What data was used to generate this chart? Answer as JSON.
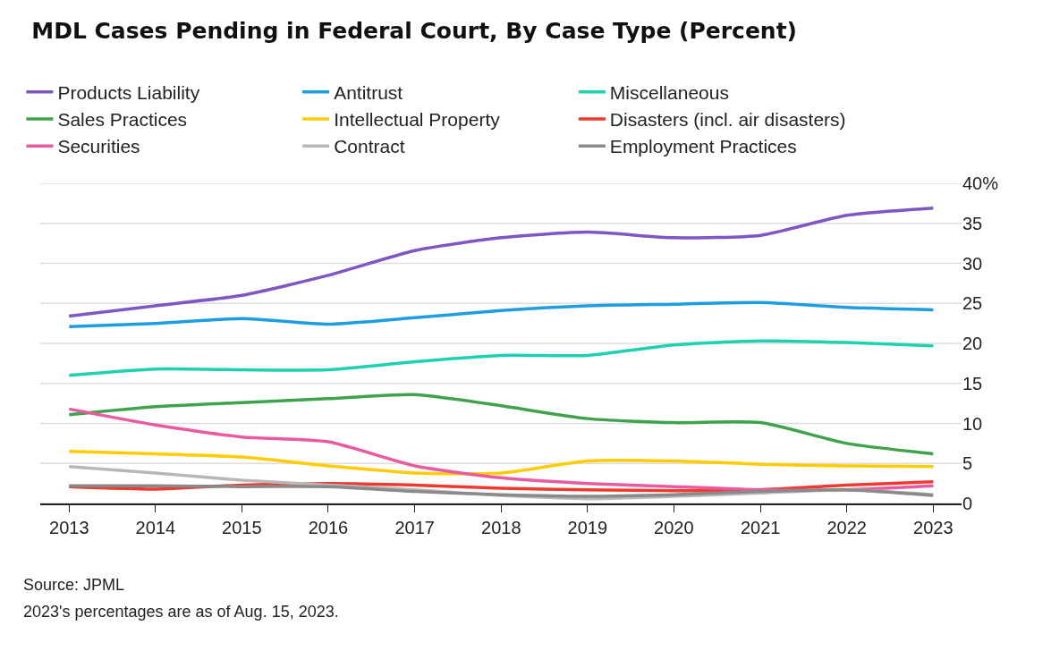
{
  "chart_data": {
    "type": "line",
    "title": "MDL Cases Pending in Federal Court, By Case Type (Percent)",
    "x": [
      "2013",
      "2014",
      "2015",
      "2016",
      "2017",
      "2018",
      "2019",
      "2020",
      "2021",
      "2022",
      "2023"
    ],
    "xticks": [
      {
        "value": "2013",
        "label": "2013"
      },
      {
        "value": "2014",
        "label": "2014"
      },
      {
        "value": "2015",
        "label": "2015"
      },
      {
        "value": "2016",
        "label": "2016"
      },
      {
        "value": "2017",
        "label": "2017"
      },
      {
        "value": "2018",
        "label": "2018"
      },
      {
        "value": "2019",
        "label": "2019"
      },
      {
        "value": "2020",
        "label": "2020"
      },
      {
        "value": "2021",
        "label": "2021"
      },
      {
        "value": "2022",
        "label": "2022"
      },
      {
        "value": "2023",
        "label": "2023"
      }
    ],
    "xlim": [
      "2012-09",
      "2023-05"
    ],
    "ylim": [
      0,
      40
    ],
    "yticks": [
      0,
      5,
      10,
      15,
      20,
      25,
      30,
      35,
      {
        "value": 40,
        "label": "40%"
      }
    ],
    "grid": "y",
    "legend": "top",
    "marker": "none",
    "line_style": "solid",
    "series": [
      {
        "name": "Products Liability",
        "color": "#7e57c2",
        "values": [
          23.4,
          24.7,
          26,
          28.5,
          31.6,
          33.2,
          33.9,
          33.2,
          33.5,
          36,
          36.9
        ]
      },
      {
        "name": "Antitrust",
        "color": "#1e9ee0",
        "values": [
          22.1,
          22.5,
          23.1,
          22.4,
          23.2,
          24.1,
          24.7,
          24.9,
          25.1,
          24.5,
          24.2
        ]
      },
      {
        "name": "Miscellaneous",
        "color": "#1ed1b0",
        "values": [
          16,
          16.8,
          16.7,
          16.7,
          17.7,
          18.5,
          18.5,
          19.8,
          20.3,
          20.1,
          19.7
        ]
      },
      {
        "name": "Sales Practices",
        "color": "#3fa34d",
        "values": [
          11.1,
          12.1,
          12.6,
          13.1,
          13.6,
          12.2,
          10.6,
          10.1,
          10.1,
          7.5,
          6.2
        ]
      },
      {
        "name": "Intellectual Property",
        "color": "#ffcc00",
        "values": [
          6.5,
          6.2,
          5.8,
          4.7,
          3.8,
          3.8,
          5.3,
          5.3,
          4.9,
          4.7,
          4.6
        ]
      },
      {
        "name": "Disasters (incl. air disasters)",
        "color": "#f03a30",
        "values": [
          2.1,
          1.8,
          2.3,
          2.5,
          2.3,
          1.9,
          1.7,
          1.6,
          1.7,
          2.3,
          2.7
        ]
      },
      {
        "name": "Securities",
        "color": "#e85ba0",
        "values": [
          11.8,
          9.8,
          8.3,
          7.7,
          4.7,
          3.2,
          2.5,
          2.1,
          1.7,
          1.7,
          2.2
        ]
      },
      {
        "name": "Contract",
        "color": "#b8b8b8",
        "values": [
          4.6,
          3.8,
          2.9,
          2.3,
          1.7,
          1.0,
          0.6,
          0.9,
          1.3,
          1.7,
          1.1
        ]
      },
      {
        "name": "Employment Practices",
        "color": "#8a8a8a",
        "values": [
          2.2,
          2.2,
          2.1,
          2.1,
          1.5,
          1.1,
          0.9,
          1.1,
          1.5,
          1.7,
          1.0
        ]
      }
    ],
    "annotations": [
      "Source: JPML",
      "2023's percentages are as of Aug. 15, 2023."
    ]
  }
}
